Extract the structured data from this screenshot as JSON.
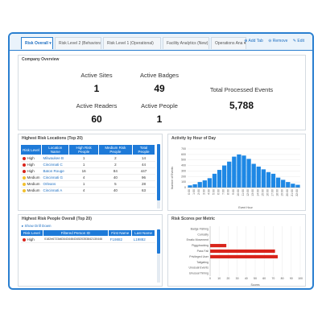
{
  "tabs": [
    {
      "label": "Risk Overall ▾"
    },
    {
      "label": "Risk Level 2 (Behavioral)"
    },
    {
      "label": "Risk Level 1 (Operational)"
    },
    {
      "label": "Facility Analytics (New)"
    },
    {
      "label": "Operations Ana ▾"
    }
  ],
  "tab_actions": {
    "add": "⊕ Add Tab",
    "remove": "⊖ Remove",
    "edit": "✎ Edit"
  },
  "overview": {
    "title": "Company Overview",
    "active_sites_label": "Active Sites",
    "active_sites_value": "1",
    "active_badges_label": "Active Badges",
    "active_badges_value": "49",
    "active_readers_label": "Active Readers",
    "active_readers_value": "60",
    "active_people_label": "Active People",
    "active_people_value": "1",
    "events_label": "Total Processed Events",
    "events_value": "5,788"
  },
  "locations": {
    "title": "Highest Risk Locations (Top 20)",
    "headers": [
      "Risk Level",
      "Location Name",
      "High Risk People",
      "Medium Risk People",
      "Total People"
    ],
    "rows": [
      {
        "level": "High",
        "color": "#d9241b",
        "name": "Milwaukee B",
        "high": "1",
        "medium": "2",
        "total": "14"
      },
      {
        "level": "High",
        "color": "#d9241b",
        "name": "Cincinnati C",
        "high": "1",
        "medium": "2",
        "total": "44"
      },
      {
        "level": "High",
        "color": "#d9241b",
        "name": "Baton Rouge",
        "high": "16",
        "medium": "84",
        "total": "447"
      },
      {
        "level": "Medium",
        "color": "#f2c12e",
        "name": "Cincinnati G",
        "high": "4",
        "medium": "40",
        "total": "96"
      },
      {
        "level": "Medium",
        "color": "#f2c12e",
        "name": "Orleans",
        "high": "1",
        "medium": "5",
        "total": "28"
      },
      {
        "level": "Medium",
        "color": "#f2c12e",
        "name": "Cincinnati A",
        "high": "4",
        "medium": "40",
        "total": "63"
      }
    ]
  },
  "activity": {
    "title": "Activity by Hour of Day",
    "ylabel": "Number of Events",
    "xlabel": "Event Hour"
  },
  "people": {
    "title": "Highest Risk People Overall (Top 20)",
    "drill": "▸ Show Drill Down",
    "headers": [
      "Risk Level",
      "Filtered Person ID",
      "First Name",
      "Last Name"
    ],
    "rows": [
      {
        "level": "High",
        "color": "#d9241b",
        "pid": "0182e6723d63443446434520353842130446",
        "first": "F19882",
        "last": "L19882"
      }
    ]
  },
  "scores": {
    "title": "Risk Scores per Metric",
    "xlabel": "Scores"
  },
  "chart_data": [
    {
      "type": "bar",
      "title": "Activity by Hour of Day",
      "xlabel": "Event Hour",
      "ylabel": "Number of Events",
      "categories": [
        "0:00",
        "1:00",
        "2:00",
        "3:00",
        "4:00",
        "5:00",
        "6:00",
        "7:00",
        "8:00",
        "9:00",
        "10:00",
        "11:00",
        "12:00",
        "13:00",
        "14:00",
        "15:00",
        "16:00",
        "17:00",
        "18:00",
        "19:00",
        "20:00",
        "21:00",
        "22:00"
      ],
      "values": [
        40,
        60,
        100,
        130,
        170,
        250,
        320,
        400,
        470,
        560,
        600,
        580,
        520,
        430,
        380,
        330,
        280,
        250,
        180,
        140,
        100,
        70,
        50
      ],
      "ylim": [
        0,
        700
      ],
      "yticks": [
        "0",
        "100",
        "200",
        "300",
        "400",
        "500",
        "600",
        "700"
      ],
      "color": "#1e88e5"
    },
    {
      "type": "bar",
      "orientation": "horizontal",
      "title": "Risk Scores per Metric",
      "xlabel": "Scores",
      "categories": [
        "Badge Fishing",
        "Curiosity",
        "Erratic Movement",
        "Piggybacking",
        "Pass Fail",
        "Privileged User",
        "Tailgating",
        "Unusual Events",
        "Unusual Timing"
      ],
      "values": [
        0,
        0,
        0,
        18,
        72,
        75,
        0,
        0,
        0
      ],
      "xlim": [
        0,
        100
      ],
      "xticks": [
        "0",
        "10",
        "20",
        "30",
        "40",
        "50",
        "60",
        "70",
        "80",
        "90",
        "100"
      ],
      "color": "#d9241b"
    }
  ]
}
